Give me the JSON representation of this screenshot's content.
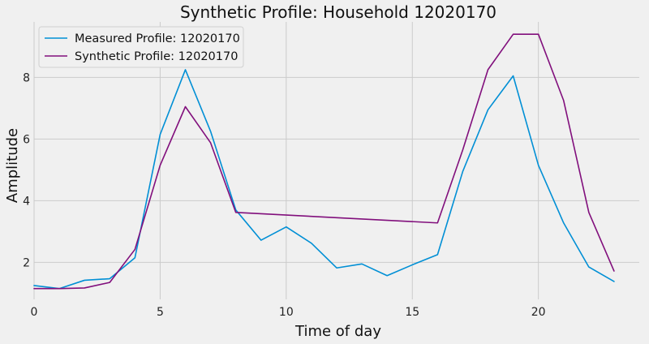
{
  "chart_data": {
    "type": "line",
    "title": "Synthetic Profile: Household 12020170",
    "xlabel": "Time of day",
    "ylabel": "Amplitude",
    "xlim": [
      0,
      24
    ],
    "ylim": [
      0.8,
      9.8
    ],
    "xticks": [
      0,
      5,
      10,
      15,
      20
    ],
    "yticks": [
      2,
      4,
      6,
      8
    ],
    "grid": true,
    "legend_position": "top-left",
    "series": [
      {
        "name": "Measured Profile: 12020170",
        "color": "#008fd5",
        "x": [
          0,
          1,
          2,
          3,
          4,
          5,
          6,
          7,
          8,
          9,
          10,
          11,
          12,
          13,
          14,
          15,
          16,
          17,
          18,
          19,
          20,
          21,
          22,
          23
        ],
        "y": [
          1.25,
          1.15,
          1.42,
          1.47,
          2.15,
          6.15,
          8.25,
          6.25,
          3.7,
          2.72,
          3.15,
          2.62,
          1.82,
          1.95,
          1.57,
          1.92,
          2.25,
          4.95,
          6.95,
          8.05,
          5.15,
          3.28,
          1.85,
          1.38
        ]
      },
      {
        "name": "Synthetic Profile: 12020170",
        "color": "#810f7c",
        "x": [
          0,
          1,
          2,
          3,
          4,
          5,
          6,
          7,
          8,
          16,
          17,
          18,
          19,
          20,
          21,
          22,
          23
        ],
        "y": [
          1.15,
          1.15,
          1.17,
          1.35,
          2.42,
          5.15,
          7.05,
          5.88,
          3.62,
          3.28,
          5.65,
          8.25,
          9.4,
          9.4,
          7.25,
          3.62,
          1.72
        ]
      }
    ]
  }
}
